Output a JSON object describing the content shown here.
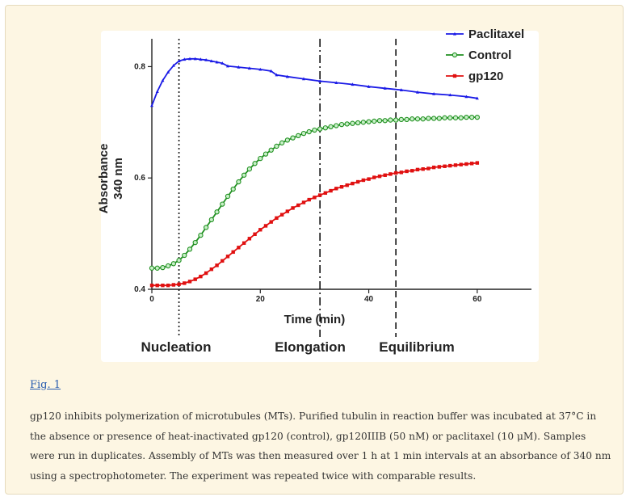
{
  "figure": {
    "link_label": "Fig. 1",
    "caption": "gp120 inhibits polymerization of microtubules (MTs). Purified tubulin in reaction buffer was incubated at 37°C in the absence or presence of heat-inactivated gp120 (control), gp120IIIB (50 nM) or paclitaxel (10 μM). Samples were run in duplicates. Assembly of MTs was then measured over 1 h at 1 min intervals at an absorbance of 340 nm using a spectrophotometer. The experiment was repeated twice with comparable results."
  },
  "chart_data": {
    "type": "line",
    "title": "",
    "xlabel": "Time (min)",
    "ylabel_line1": "Absorbance",
    "ylabel_line2": "340 nm",
    "xlim": [
      0,
      70
    ],
    "ylim": [
      0.4,
      0.85
    ],
    "xticks": [
      0,
      20,
      40,
      60
    ],
    "yticks": [
      0.4,
      0.6,
      0.8
    ],
    "ytick_labels": [
      "0.4",
      "0.6",
      "0.8"
    ],
    "grid": false,
    "legend_position": "top-right",
    "series": [
      {
        "name": "Paclitaxel",
        "color": "#1a1ae6",
        "marker": "triangle",
        "points": [
          [
            0,
            0.73
          ],
          [
            1,
            0.755
          ],
          [
            2,
            0.775
          ],
          [
            3,
            0.79
          ],
          [
            4,
            0.802
          ],
          [
            5,
            0.81
          ],
          [
            6,
            0.813
          ],
          [
            7,
            0.814
          ],
          [
            8,
            0.814
          ],
          [
            9,
            0.813
          ],
          [
            10,
            0.812
          ],
          [
            11,
            0.81
          ],
          [
            12,
            0.808
          ],
          [
            13,
            0.806
          ],
          [
            14,
            0.801
          ],
          [
            16,
            0.799
          ],
          [
            18,
            0.797
          ],
          [
            20,
            0.795
          ],
          [
            22,
            0.792
          ],
          [
            23,
            0.785
          ],
          [
            25,
            0.782
          ],
          [
            28,
            0.778
          ],
          [
            31,
            0.774
          ],
          [
            34,
            0.771
          ],
          [
            37,
            0.768
          ],
          [
            40,
            0.764
          ],
          [
            43,
            0.761
          ],
          [
            46,
            0.758
          ],
          [
            49,
            0.754
          ],
          [
            52,
            0.751
          ],
          [
            55,
            0.749
          ],
          [
            58,
            0.746
          ],
          [
            60,
            0.743
          ]
        ]
      },
      {
        "name": "Control",
        "color": "#1f8f1f",
        "marker": "circle",
        "points": [
          [
            0,
            0.438
          ],
          [
            1,
            0.438
          ],
          [
            2,
            0.439
          ],
          [
            3,
            0.442
          ],
          [
            4,
            0.446
          ],
          [
            5,
            0.452
          ],
          [
            6,
            0.461
          ],
          [
            7,
            0.472
          ],
          [
            8,
            0.484
          ],
          [
            9,
            0.497
          ],
          [
            10,
            0.511
          ],
          [
            11,
            0.525
          ],
          [
            12,
            0.539
          ],
          [
            13,
            0.553
          ],
          [
            14,
            0.567
          ],
          [
            15,
            0.58
          ],
          [
            16,
            0.593
          ],
          [
            17,
            0.605
          ],
          [
            18,
            0.616
          ],
          [
            19,
            0.626
          ],
          [
            20,
            0.635
          ],
          [
            21,
            0.643
          ],
          [
            22,
            0.65
          ],
          [
            23,
            0.657
          ],
          [
            24,
            0.663
          ],
          [
            25,
            0.668
          ],
          [
            26,
            0.672
          ],
          [
            27,
            0.676
          ],
          [
            28,
            0.68
          ],
          [
            29,
            0.683
          ],
          [
            30,
            0.686
          ],
          [
            31,
            0.688
          ],
          [
            32,
            0.69
          ],
          [
            33,
            0.692
          ],
          [
            34,
            0.694
          ],
          [
            35,
            0.696
          ],
          [
            36,
            0.697
          ],
          [
            37,
            0.698
          ],
          [
            38,
            0.699
          ],
          [
            39,
            0.7
          ],
          [
            40,
            0.701
          ],
          [
            41,
            0.702
          ],
          [
            42,
            0.703
          ],
          [
            43,
            0.703
          ],
          [
            44,
            0.704
          ],
          [
            45,
            0.704
          ],
          [
            46,
            0.705
          ],
          [
            47,
            0.705
          ],
          [
            48,
            0.706
          ],
          [
            49,
            0.706
          ],
          [
            50,
            0.706
          ],
          [
            51,
            0.707
          ],
          [
            52,
            0.707
          ],
          [
            53,
            0.707
          ],
          [
            54,
            0.708
          ],
          [
            55,
            0.708
          ],
          [
            56,
            0.708
          ],
          [
            57,
            0.708
          ],
          [
            58,
            0.709
          ],
          [
            59,
            0.709
          ],
          [
            60,
            0.709
          ]
        ]
      },
      {
        "name": "gp120",
        "color": "#e01010",
        "marker": "square",
        "points": [
          [
            0,
            0.407
          ],
          [
            1,
            0.407
          ],
          [
            2,
            0.407
          ],
          [
            3,
            0.407
          ],
          [
            4,
            0.408
          ],
          [
            5,
            0.409
          ],
          [
            6,
            0.411
          ],
          [
            7,
            0.414
          ],
          [
            8,
            0.418
          ],
          [
            9,
            0.423
          ],
          [
            10,
            0.429
          ],
          [
            11,
            0.436
          ],
          [
            12,
            0.443
          ],
          [
            13,
            0.451
          ],
          [
            14,
            0.459
          ],
          [
            15,
            0.467
          ],
          [
            16,
            0.475
          ],
          [
            17,
            0.483
          ],
          [
            18,
            0.491
          ],
          [
            19,
            0.499
          ],
          [
            20,
            0.507
          ],
          [
            21,
            0.514
          ],
          [
            22,
            0.521
          ],
          [
            23,
            0.528
          ],
          [
            24,
            0.534
          ],
          [
            25,
            0.54
          ],
          [
            26,
            0.546
          ],
          [
            27,
            0.551
          ],
          [
            28,
            0.556
          ],
          [
            29,
            0.561
          ],
          [
            30,
            0.565
          ],
          [
            31,
            0.569
          ],
          [
            32,
            0.573
          ],
          [
            33,
            0.577
          ],
          [
            34,
            0.581
          ],
          [
            35,
            0.584
          ],
          [
            36,
            0.587
          ],
          [
            37,
            0.59
          ],
          [
            38,
            0.593
          ],
          [
            39,
            0.596
          ],
          [
            40,
            0.598
          ],
          [
            41,
            0.601
          ],
          [
            42,
            0.603
          ],
          [
            43,
            0.605
          ],
          [
            44,
            0.607
          ],
          [
            45,
            0.609
          ],
          [
            46,
            0.61
          ],
          [
            47,
            0.612
          ],
          [
            48,
            0.613
          ],
          [
            49,
            0.615
          ],
          [
            50,
            0.616
          ],
          [
            51,
            0.617
          ],
          [
            52,
            0.619
          ],
          [
            53,
            0.62
          ],
          [
            54,
            0.621
          ],
          [
            55,
            0.622
          ],
          [
            56,
            0.623
          ],
          [
            57,
            0.624
          ],
          [
            58,
            0.625
          ],
          [
            59,
            0.626
          ],
          [
            60,
            0.627
          ]
        ]
      }
    ],
    "vertical_lines": [
      {
        "x": 5,
        "style": "dotted"
      },
      {
        "x": 31,
        "style": "dashdot"
      },
      {
        "x": 45,
        "style": "dashed"
      }
    ],
    "phase_labels": [
      "Nucleation",
      "Elongation",
      "Equilibrium"
    ]
  }
}
